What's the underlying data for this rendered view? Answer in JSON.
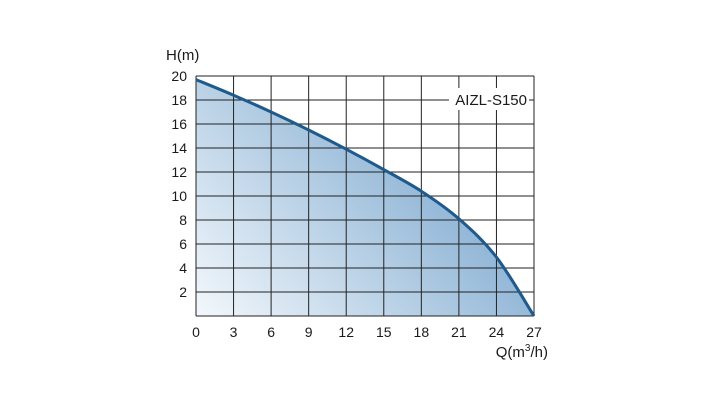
{
  "chart_data": {
    "type": "area",
    "ylabel": "H(m)",
    "xlabel_parts": [
      "Q(m",
      "3",
      "/h)"
    ],
    "legend_label": "AIZL-S150",
    "legend_placement": "top-right",
    "grid": true,
    "xlim": [
      0,
      27
    ],
    "ylim": [
      0,
      20
    ],
    "x_ticks": [
      "0",
      "3",
      "6",
      "9",
      "12",
      "15",
      "18",
      "21",
      "24",
      "27"
    ],
    "y_ticks": [
      "2",
      "4",
      "6",
      "8",
      "10",
      "12",
      "14",
      "16",
      "18",
      "20"
    ],
    "series": [
      {
        "x": [
          0,
          3,
          6,
          9,
          12,
          15,
          18,
          21,
          24,
          27
        ],
        "y": [
          19.7,
          18.4,
          17.0,
          15.5,
          13.9,
          12.2,
          10.4,
          8.1,
          4.9,
          0
        ]
      }
    ],
    "colors": {
      "line": "#1f5a8c",
      "fill_dark": "#7ca8cf",
      "fill_light": "#f3f8fc",
      "grid": "#222222"
    }
  }
}
